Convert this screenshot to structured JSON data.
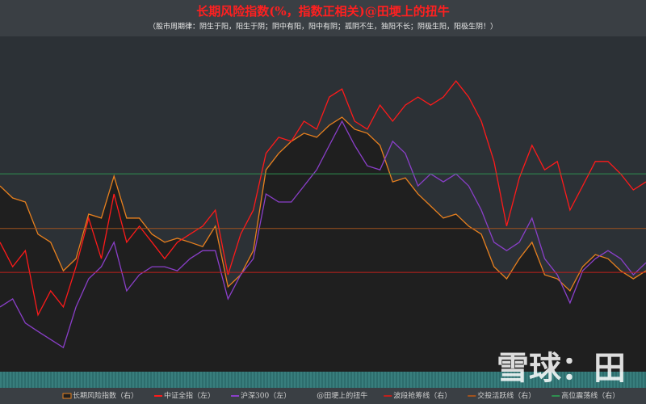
{
  "chart_data": {
    "type": "line",
    "title": "长期风险指数(%，指数正相关)@田埂上的扭牛",
    "subtitle": "（股市周期律：阴生于阳，阳生于阴；阴中有阳，阳中有阴；孤阴不生，独阳不长；阴极生阳，阳极生阴！）",
    "ylim": [
      0,
      100
    ],
    "y2lim": [
      0,
      100
    ],
    "series": [
      {
        "name": "长期风险指数（右）",
        "color": "#e8801e",
        "fill": "#1f1f1f",
        "axis": "y2",
        "values": [
          55.4,
          51.8,
          50.6,
          41.0,
          38.6,
          30.1,
          33.7,
          47.0,
          45.8,
          58.3,
          45.8,
          45.8,
          41.0,
          38.6,
          39.8,
          38.6,
          37.3,
          43.4,
          25.3,
          28.9,
          36.1,
          60.2,
          65.1,
          68.7,
          71.1,
          69.9,
          73.5,
          75.9,
          72.3,
          71.1,
          67.5,
          56.6,
          57.8,
          53.0,
          49.4,
          45.8,
          47.0,
          43.4,
          41.0,
          31.3,
          27.7,
          33.7,
          38.6,
          28.9,
          27.7,
          24.1,
          31.3,
          34.9,
          33.7,
          30.1,
          27.7,
          30.1
        ]
      },
      {
        "name": "中证全指（左）",
        "color": "#ff1a1a",
        "values": [
          38.6,
          31.3,
          36.1,
          16.9,
          24.1,
          19.3,
          31.3,
          45.8,
          33.7,
          53.0,
          38.6,
          43.4,
          38.6,
          33.7,
          38.6,
          41.0,
          43.4,
          48.2,
          28.9,
          41.0,
          48.2,
          65.1,
          69.9,
          68.7,
          74.7,
          72.3,
          81.9,
          84.3,
          74.7,
          72.3,
          79.5,
          74.7,
          79.5,
          81.9,
          79.5,
          81.9,
          86.7,
          81.9,
          74.7,
          62.7,
          43.4,
          57.8,
          67.5,
          60.2,
          62.7,
          48.2,
          55.4,
          62.7,
          62.7,
          59.0,
          54.2,
          56.6
        ]
      },
      {
        "name": "沪深300（左）",
        "color": "#8a3fc9",
        "values": [
          19.3,
          21.7,
          14.5,
          12.0,
          9.6,
          7.2,
          19.3,
          27.7,
          31.3,
          38.6,
          24.1,
          28.9,
          31.3,
          31.3,
          30.1,
          33.7,
          36.1,
          36.1,
          21.7,
          28.9,
          33.7,
          53.0,
          50.6,
          50.6,
          55.4,
          60.2,
          67.5,
          74.7,
          67.5,
          61.4,
          60.2,
          68.7,
          65.1,
          55.4,
          59.0,
          56.6,
          59.0,
          55.4,
          48.2,
          38.6,
          36.1,
          38.6,
          45.8,
          33.7,
          28.9,
          20.5,
          30.1,
          33.7,
          36.1,
          33.7,
          28.9,
          32.5
        ]
      }
    ],
    "legend_note": "@田埂上的扭牛",
    "reference_lines": [
      {
        "name": "波段抢筹线（右）",
        "color": "#c0201c",
        "value": 29.6
      },
      {
        "name": "交投活跃线（右）",
        "color": "#a0521e",
        "value": 42.7
      },
      {
        "name": "高位震荡线（右）",
        "color": "#2f8f4f",
        "value": 59.0
      }
    ],
    "watermark": "雪球：田"
  }
}
